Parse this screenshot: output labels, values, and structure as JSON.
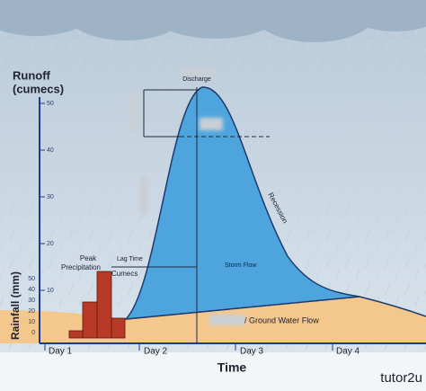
{
  "diagram": {
    "runoff_axis": {
      "title_lines": [
        "Runoff",
        "(cumecs)"
      ],
      "ticks": [
        "50",
        "40",
        "30",
        "20",
        "10"
      ]
    },
    "rainfall_axis": {
      "title": "Rainfall (mm)",
      "ticks": [
        "50",
        "40",
        "30",
        "20",
        "10",
        "0"
      ]
    },
    "time_axis": {
      "title": "Time",
      "ticks": [
        "Day 1",
        "Day 2",
        "Day 3",
        "Day 4"
      ]
    },
    "labels": {
      "peak_precipitation": [
        "Peak",
        "Precipitation"
      ],
      "lag_time": "Lag Time",
      "cumecs": "Cumecs",
      "discharge": "Discharge",
      "storm_flow": "Storm Flow",
      "recession": "Recession",
      "ground_water_flow": "/ Ground Water Flow"
    },
    "brand": "tutor2u"
  }
}
